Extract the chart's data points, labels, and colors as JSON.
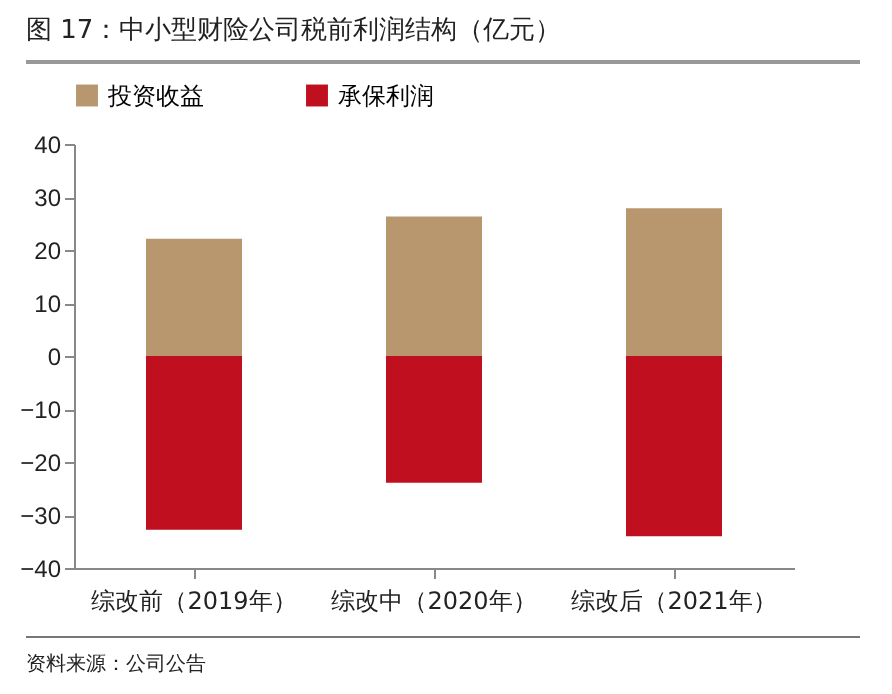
{
  "chart_data": {
    "type": "bar",
    "title": "图 17：中小型财险公司税前利润结构（亿元）",
    "categories": [
      "综改前（2019年）",
      "综改中（2020年）",
      "综改后（2021年）"
    ],
    "series": [
      {
        "name": "投资收益",
        "color": "#b8976f",
        "values": [
          22.1,
          26.3,
          27.9
        ]
      },
      {
        "name": "承保利润",
        "color": "#c00f1e",
        "values": [
          -32.8,
          -23.9,
          -34.0
        ]
      }
    ],
    "stacked": true,
    "ylim": [
      -40,
      40
    ],
    "yticks": [
      -40,
      -30,
      -20,
      -10,
      0,
      10,
      20,
      30,
      40
    ],
    "legend": "top",
    "annotations": [
      "资料来源：公司公告"
    ]
  }
}
